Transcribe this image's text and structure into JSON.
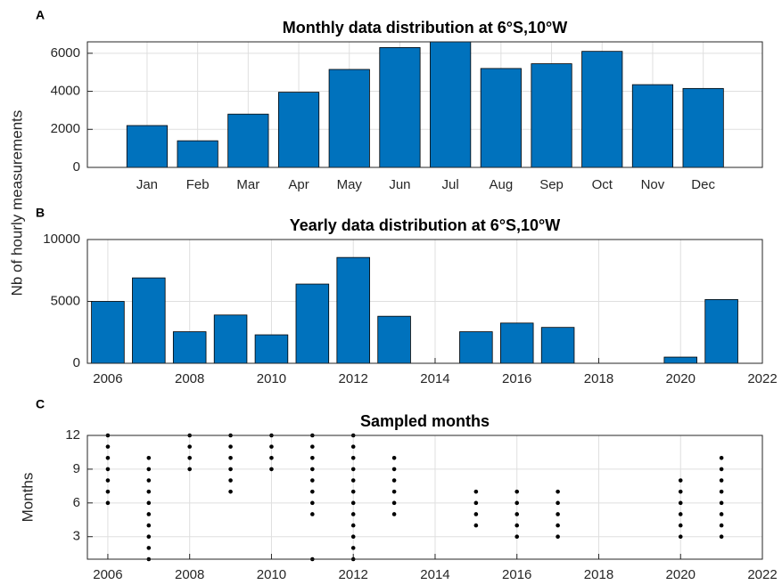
{
  "chart_data": [
    {
      "type": "bar",
      "panel_label": "A",
      "title": "Monthly data distribution at 6°S,10°W",
      "categories": [
        "Jan",
        "Feb",
        "Mar",
        "Apr",
        "May",
        "Jun",
        "Jul",
        "Aug",
        "Sep",
        "Oct",
        "Nov",
        "Dec"
      ],
      "values": [
        2200,
        1400,
        2800,
        3950,
        5150,
        6300,
        6600,
        5200,
        5450,
        6100,
        4350,
        4150
      ],
      "color": "#0072bd",
      "ylim": [
        0,
        6600
      ],
      "yticks": [
        0,
        2000,
        4000,
        6000
      ],
      "grid": true
    },
    {
      "type": "bar",
      "panel_label": "B",
      "title": "Yearly data distribution at 6°S,10°W",
      "ylabel": "Nb of hourly measurements",
      "x": [
        2006,
        2007,
        2008,
        2009,
        2010,
        2011,
        2012,
        2013,
        2014,
        2015,
        2016,
        2017,
        2018,
        2019,
        2020,
        2021
      ],
      "values": [
        5000,
        6900,
        2550,
        3900,
        2300,
        6400,
        8550,
        3800,
        0,
        2550,
        3250,
        2900,
        0,
        0,
        500,
        5150
      ],
      "color": "#0072bd",
      "xlim": [
        2005.5,
        2022
      ],
      "xticks": [
        2006,
        2008,
        2010,
        2012,
        2014,
        2016,
        2018,
        2020,
        2022
      ],
      "ylim": [
        0,
        10000
      ],
      "yticks": [
        0,
        5000,
        10000
      ],
      "grid": true
    },
    {
      "type": "scatter",
      "panel_label": "C",
      "title": "Sampled months",
      "ylabel": "Months",
      "x": [
        2006,
        2006,
        2006,
        2006,
        2006,
        2006,
        2006,
        2007,
        2007,
        2007,
        2007,
        2007,
        2007,
        2007,
        2007,
        2007,
        2007,
        2008,
        2008,
        2008,
        2008,
        2009,
        2009,
        2009,
        2009,
        2009,
        2009,
        2010,
        2010,
        2010,
        2010,
        2011,
        2011,
        2011,
        2011,
        2011,
        2011,
        2011,
        2011,
        2011,
        2012,
        2012,
        2012,
        2012,
        2012,
        2012,
        2012,
        2012,
        2012,
        2012,
        2012,
        2012,
        2013,
        2013,
        2013,
        2013,
        2013,
        2013,
        2015,
        2015,
        2015,
        2015,
        2016,
        2016,
        2016,
        2016,
        2016,
        2017,
        2017,
        2017,
        2017,
        2017,
        2020,
        2020,
        2020,
        2020,
        2020,
        2020,
        2021,
        2021,
        2021,
        2021,
        2021,
        2021,
        2021,
        2021
      ],
      "y": [
        6,
        7,
        8,
        9,
        10,
        11,
        12,
        1,
        2,
        3,
        4,
        5,
        6,
        7,
        8,
        9,
        10,
        9,
        10,
        11,
        12,
        7,
        8,
        9,
        10,
        11,
        12,
        9,
        10,
        11,
        12,
        1,
        5,
        6,
        7,
        8,
        9,
        10,
        11,
        12,
        1,
        2,
        3,
        4,
        5,
        6,
        7,
        8,
        9,
        10,
        11,
        12,
        5,
        6,
        7,
        8,
        9,
        10,
        4,
        5,
        6,
        7,
        3,
        4,
        5,
        6,
        7,
        3,
        4,
        5,
        6,
        7,
        3,
        4,
        5,
        6,
        7,
        8,
        3,
        4,
        5,
        6,
        7,
        8,
        9,
        10
      ],
      "color": "#000000",
      "xlim": [
        2005.5,
        2022
      ],
      "xticks": [
        2006,
        2008,
        2010,
        2012,
        2014,
        2016,
        2018,
        2020,
        2022
      ],
      "ylim": [
        1,
        12
      ],
      "yticks": [
        3,
        6,
        9,
        12
      ],
      "grid": true
    }
  ]
}
